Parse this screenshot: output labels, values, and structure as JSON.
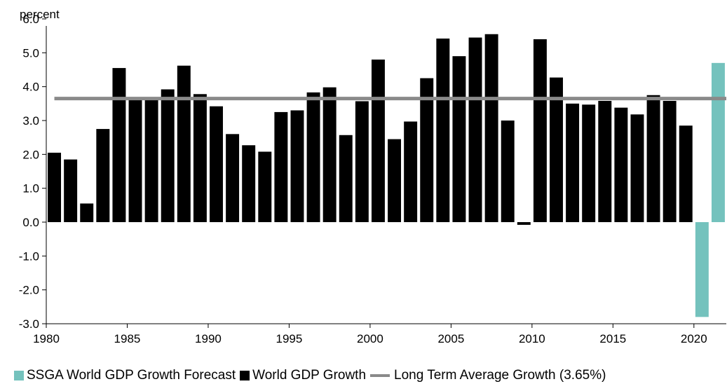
{
  "chart_data": {
    "type": "bar",
    "ylabel": "percent",
    "ylim": [
      -3.0,
      6.0
    ],
    "yticks": [
      "6.0",
      "5.0",
      "4.0",
      "3.0",
      "2.0",
      "1.0",
      "0.0",
      "-1.0",
      "-2.0",
      "-3.0"
    ],
    "xlim": [
      1980,
      2022
    ],
    "xticks": [
      "1980",
      "1985",
      "1990",
      "1995",
      "2000",
      "2005",
      "2010",
      "2015",
      "2020"
    ],
    "series": [
      {
        "name": "World GDP Growth",
        "color": "#000000",
        "x": [
          1981,
          1982,
          1983,
          1984,
          1985,
          1986,
          1987,
          1988,
          1989,
          1990,
          1991,
          1992,
          1993,
          1994,
          1995,
          1996,
          1997,
          1998,
          1999,
          2000,
          2001,
          2002,
          2003,
          2004,
          2005,
          2006,
          2007,
          2008,
          2009,
          2010,
          2011,
          2012,
          2013,
          2014,
          2015,
          2016,
          2017,
          2018,
          2019,
          2020
        ],
        "values": [
          2.05,
          1.85,
          0.55,
          2.75,
          4.55,
          3.6,
          3.65,
          3.92,
          4.62,
          3.78,
          3.42,
          2.6,
          2.27,
          2.08,
          3.25,
          3.3,
          3.83,
          3.98,
          2.57,
          3.57,
          4.8,
          2.45,
          2.97,
          4.25,
          5.42,
          4.9,
          5.45,
          5.55,
          3.0,
          -0.08,
          5.4,
          4.27,
          3.5,
          3.47,
          3.58,
          3.38,
          3.18,
          3.75,
          3.58,
          2.85
        ]
      },
      {
        "name": "SSGA World GDP Growth Forecast",
        "color": "#74c2bd",
        "x": [
          2021,
          2022
        ],
        "values": [
          -2.8,
          4.7
        ]
      }
    ],
    "reference_line": {
      "name": "Long Term Average Growth (3.65%)",
      "value": 3.65,
      "color": "#8a8a8a"
    },
    "legend": [
      {
        "label": "SSGA World GDP Growth Forecast",
        "kind": "box",
        "color": "#74c2bd"
      },
      {
        "label": "World GDP Growth",
        "kind": "box",
        "color": "#000000"
      },
      {
        "label": "Long Term Average Growth (3.65%)",
        "kind": "line",
        "color": "#8a8a8a"
      }
    ],
    "legend_placement": "bottom",
    "grid": false
  }
}
